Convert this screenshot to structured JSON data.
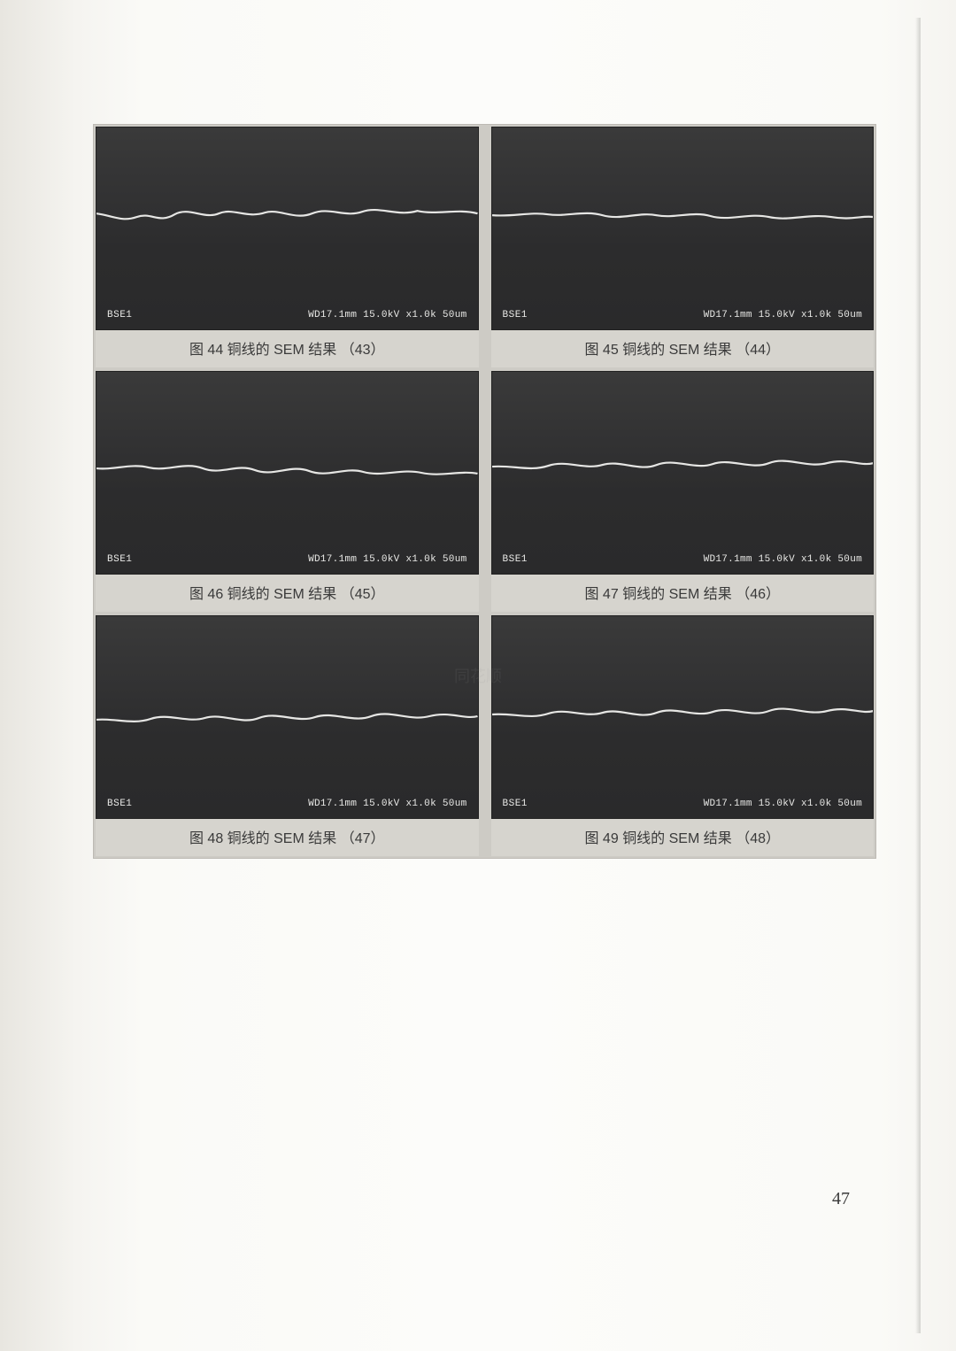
{
  "page_number": "47",
  "watermark": "同花顺",
  "sem_overlay": {
    "detector": "BSE1",
    "params": "WD17.1mm 15.0kV x1.0k  50um"
  },
  "panels": [
    {
      "fig_no": "44",
      "result_no": "43",
      "caption_prefix": "图",
      "caption_mid": "铜线的 SEM 结果",
      "caption_open": "（",
      "caption_close": "）"
    },
    {
      "fig_no": "45",
      "result_no": "44",
      "caption_prefix": "图",
      "caption_mid": "铜线的 SEM 结果",
      "caption_open": "（",
      "caption_close": "）"
    },
    {
      "fig_no": "46",
      "result_no": "45",
      "caption_prefix": "图",
      "caption_mid": "铜线的 SEM 结果",
      "caption_open": "（",
      "caption_close": "）"
    },
    {
      "fig_no": "47",
      "result_no": "46",
      "caption_prefix": "图",
      "caption_mid": "铜线的 SEM 结果",
      "caption_open": "（",
      "caption_close": "）"
    },
    {
      "fig_no": "48",
      "result_no": "47",
      "caption_prefix": "图",
      "caption_mid": "铜线的 SEM 结果",
      "caption_open": "（",
      "caption_close": "）"
    },
    {
      "fig_no": "49",
      "result_no": "48",
      "caption_prefix": "图",
      "caption_mid": "铜线的 SEM 结果",
      "caption_open": "（",
      "caption_close": "）"
    }
  ],
  "sem_style": {
    "trace_color": "#e6e6e4",
    "trace_width": 2.2,
    "bg_gradient_top": "#3a3a3a",
    "bg_gradient_bottom": "#2a2a2b",
    "panel_aspect": 1.7
  },
  "traces": [
    "M0,98 C15,100 25,108 40,102 C55,96 62,110 78,99 C92,90 108,105 122,98 C136,91 150,104 168,97 C182,92 198,106 215,98 C232,90 248,103 265,96 C282,89 300,102 320,95 C340,100 360,92 380,98",
    "M0,100 C20,102 38,96 56,99 C74,102 92,94 110,100 C128,106 146,96 164,100 C182,104 200,95 218,101 C236,107 256,97 276,102 C296,107 316,98 338,102 C358,106 370,100 380,102",
    "M0,110 C18,112 34,104 52,109 C70,114 88,102 106,110 C124,118 140,104 158,112 C176,120 194,105 212,113 C230,121 248,108 266,114 C284,120 304,110 324,115 C344,120 362,112 380,116",
    "M0,108 C20,106 38,114 56,107 C74,100 92,112 110,106 C128,100 146,114 164,106 C182,98 202,112 220,105 C238,98 258,112 276,104 C294,96 314,110 334,104 C354,98 368,108 380,104",
    "M0,118 C18,116 36,124 54,117 C72,110 90,122 108,116 C126,110 144,124 162,116 C180,108 200,122 218,115 C236,108 256,122 274,114 C292,106 312,120 332,114 C352,108 368,118 380,114",
    "M0,112 C20,110 38,118 56,111 C74,104 92,116 110,110 C128,104 146,118 164,110 C182,102 202,116 220,109 C238,102 258,116 276,108 C294,100 314,114 334,108 C354,102 368,112 380,108"
  ]
}
